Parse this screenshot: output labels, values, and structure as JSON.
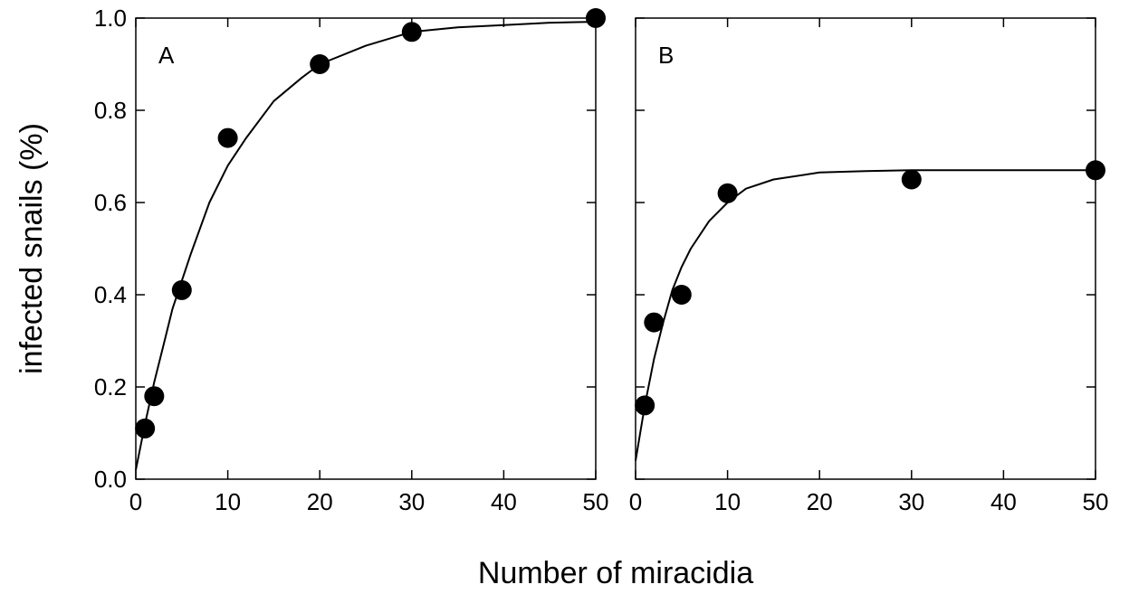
{
  "chart_data": {
    "type": "scatter",
    "shared": {
      "xlabel": "Number of miracidia",
      "ylabel": "infected snails (%)",
      "xlim": [
        0,
        50
      ],
      "ylim": [
        0,
        1.0
      ],
      "x_ticks": [
        "0",
        "10",
        "20",
        "30",
        "40",
        "50"
      ],
      "y_ticks": [
        "0.0",
        "0.2",
        "0.4",
        "0.6",
        "0.8",
        "1.0"
      ],
      "grid": false,
      "legend": "none",
      "colors": {
        "marker": "#000000",
        "line": "#000000"
      }
    },
    "panels": [
      {
        "label": "A",
        "series": [
          {
            "kind": "points",
            "x": [
              1,
              2,
              5,
              10,
              20,
              30,
              50
            ],
            "y": [
              0.11,
              0.18,
              0.41,
              0.74,
              0.9,
              0.97,
              1.0
            ]
          },
          {
            "kind": "fitted-curve",
            "x": [
              0,
              1,
              2,
              3,
              4,
              5,
              6,
              8,
              10,
              12,
              15,
              18,
              20,
              25,
              30,
              35,
              40,
              45,
              50
            ],
            "y": [
              0.02,
              0.12,
              0.21,
              0.29,
              0.37,
              0.43,
              0.49,
              0.6,
              0.68,
              0.74,
              0.82,
              0.87,
              0.9,
              0.94,
              0.97,
              0.98,
              0.985,
              0.99,
              0.992
            ]
          }
        ]
      },
      {
        "label": "B",
        "series": [
          {
            "kind": "points",
            "x": [
              1,
              2,
              5,
              10,
              30,
              50
            ],
            "y": [
              0.16,
              0.34,
              0.4,
              0.62,
              0.65,
              0.67
            ]
          },
          {
            "kind": "fitted-curve",
            "x": [
              0,
              1,
              2,
              3,
              4,
              5,
              6,
              8,
              10,
              12,
              15,
              20,
              25,
              30,
              40,
              50
            ],
            "y": [
              0.04,
              0.16,
              0.26,
              0.34,
              0.41,
              0.46,
              0.5,
              0.56,
              0.6,
              0.63,
              0.65,
              0.665,
              0.668,
              0.67,
              0.67,
              0.67
            ]
          }
        ]
      }
    ]
  }
}
